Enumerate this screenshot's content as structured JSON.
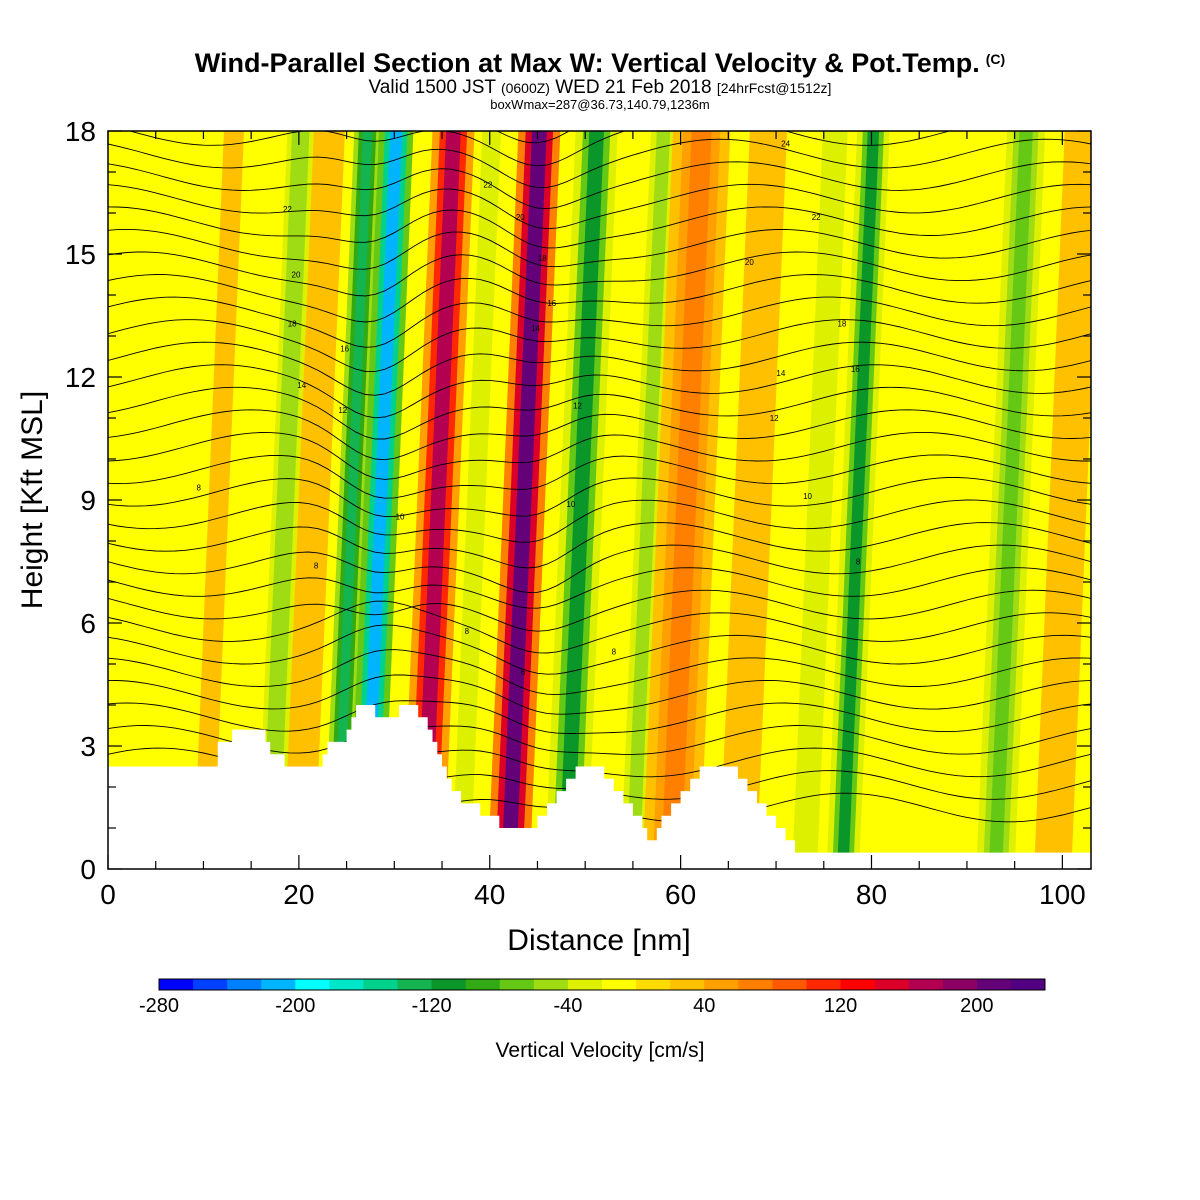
{
  "header": {
    "title": "Wind-Parallel Section at Max W: Vertical Velocity & Pot.Temp.",
    "copyright": "(C)",
    "valid_prefix": "Valid 1500 JST",
    "valid_utc": "(0600Z)",
    "valid_date": "WED 21 Feb 2018",
    "forecast": "[24hrFcst@1512z]",
    "boxinfo": "boxWmax=287@36.73,140.79,1236m"
  },
  "chart_data": {
    "type": "heatmap",
    "xlabel": "Distance [nm]",
    "ylabel": "Height [Kft MSL]",
    "xlim": [
      0,
      103
    ],
    "ylim": [
      0,
      18
    ],
    "x_ticks": [
      0,
      20,
      40,
      60,
      80,
      100
    ],
    "y_ticks": [
      0,
      3,
      6,
      9,
      12,
      15,
      18
    ],
    "colorbar": {
      "title": "Vertical Velocity [cm/s]",
      "min": -280,
      "max": 240,
      "step": 20,
      "tick_values": [
        -280,
        -200,
        -120,
        -40,
        40,
        120,
        200
      ],
      "colors": [
        "#0000ff",
        "#0040ff",
        "#0080ff",
        "#00b4ff",
        "#00ffff",
        "#00e6c8",
        "#00d28c",
        "#14b450",
        "#0a9628",
        "#32aa14",
        "#64c814",
        "#a0dc14",
        "#dcf000",
        "#ffff00",
        "#ffdc00",
        "#ffc000",
        "#ffa000",
        "#ff8000",
        "#ff5a00",
        "#ff2800",
        "#ff0000",
        "#dc0028",
        "#b40050",
        "#8c0064",
        "#640078",
        "#500080"
      ]
    },
    "velocity_bands": [
      {
        "x": 4,
        "w": 3,
        "v": 10
      },
      {
        "x": 10,
        "w": 3,
        "v": 20
      },
      {
        "x": 17,
        "w": 1.4,
        "v": -60
      },
      {
        "x": 20,
        "w": 2.5,
        "v": 30
      },
      {
        "x": 24,
        "w": 1.4,
        "v": -130
      },
      {
        "x": 27,
        "w": 1.8,
        "v": -210
      },
      {
        "x": 33,
        "w": 2.2,
        "v": 160
      },
      {
        "x": 37,
        "w": 1.5,
        "v": -40
      },
      {
        "x": 42,
        "w": 2.2,
        "v": 200
      },
      {
        "x": 48,
        "w": 2.2,
        "v": -110
      },
      {
        "x": 55,
        "w": 2,
        "v": -50
      },
      {
        "x": 59,
        "w": 3,
        "v": 60
      },
      {
        "x": 66,
        "w": 3,
        "v": 30
      },
      {
        "x": 73,
        "w": 2,
        "v": -30
      },
      {
        "x": 77,
        "w": 1.7,
        "v": -110
      },
      {
        "x": 84,
        "w": 2,
        "v": -20
      },
      {
        "x": 93,
        "w": 2,
        "v": -70
      },
      {
        "x": 99,
        "w": 3,
        "v": 30
      }
    ],
    "terrain_surface": [
      [
        0,
        2.5
      ],
      [
        11,
        2.5
      ],
      [
        11.5,
        3.1
      ],
      [
        12.5,
        3.1
      ],
      [
        13,
        3.4
      ],
      [
        16,
        3.4
      ],
      [
        16.5,
        3.1
      ],
      [
        17,
        2.8
      ],
      [
        18,
        2.8
      ],
      [
        18.5,
        2.5
      ],
      [
        22,
        2.5
      ],
      [
        22.5,
        2.8
      ],
      [
        23,
        3.1
      ],
      [
        24,
        3.1
      ],
      [
        25,
        3.4
      ],
      [
        25.5,
        3.7
      ],
      [
        26,
        4.0
      ],
      [
        27.5,
        4.0
      ],
      [
        28,
        3.7
      ],
      [
        30,
        3.7
      ],
      [
        30.5,
        4.0
      ],
      [
        32,
        4.0
      ],
      [
        32.5,
        3.7
      ],
      [
        33.5,
        3.4
      ],
      [
        34,
        3.1
      ],
      [
        34.5,
        2.8
      ],
      [
        35,
        2.5
      ],
      [
        35.5,
        2.2
      ],
      [
        36,
        1.9
      ],
      [
        37,
        1.6
      ],
      [
        38.5,
        1.6
      ],
      [
        39,
        1.3
      ],
      [
        40,
        1.3
      ],
      [
        41,
        1.0
      ],
      [
        43,
        1.0
      ],
      [
        44,
        1.0
      ],
      [
        45,
        1.3
      ],
      [
        46,
        1.6
      ],
      [
        47,
        1.9
      ],
      [
        48,
        2.2
      ],
      [
        49,
        2.5
      ],
      [
        51,
        2.5
      ],
      [
        52,
        2.2
      ],
      [
        53,
        1.9
      ],
      [
        54,
        1.6
      ],
      [
        55,
        1.3
      ],
      [
        56,
        1.0
      ],
      [
        56.5,
        0.7
      ],
      [
        57.5,
        1.0
      ],
      [
        58,
        1.3
      ],
      [
        59,
        1.6
      ],
      [
        60,
        1.9
      ],
      [
        61,
        2.2
      ],
      [
        62,
        2.5
      ],
      [
        65,
        2.5
      ],
      [
        66,
        2.2
      ],
      [
        67,
        1.9
      ],
      [
        68,
        1.6
      ],
      [
        69,
        1.3
      ],
      [
        70,
        1.0
      ],
      [
        71,
        0.7
      ],
      [
        72,
        0.4
      ],
      [
        75,
        0.4
      ],
      [
        103,
        0.4
      ]
    ],
    "contour_labels": [
      {
        "x": 9.5,
        "y": 9.3,
        "text": "8"
      },
      {
        "x": 18.8,
        "y": 16.1,
        "text": "22"
      },
      {
        "x": 19.7,
        "y": 14.5,
        "text": "20"
      },
      {
        "x": 19.3,
        "y": 13.3,
        "text": "18"
      },
      {
        "x": 20.3,
        "y": 11.8,
        "text": "14"
      },
      {
        "x": 24.8,
        "y": 12.7,
        "text": "16"
      },
      {
        "x": 24.6,
        "y": 11.2,
        "text": "12"
      },
      {
        "x": 21.8,
        "y": 7.4,
        "text": "8"
      },
      {
        "x": 30.6,
        "y": 8.6,
        "text": "10"
      },
      {
        "x": 39.8,
        "y": 16.7,
        "text": "22"
      },
      {
        "x": 43.2,
        "y": 15.9,
        "text": "20"
      },
      {
        "x": 45.5,
        "y": 14.9,
        "text": "18"
      },
      {
        "x": 46.5,
        "y": 13.8,
        "text": "16"
      },
      {
        "x": 44.8,
        "y": 13.2,
        "text": "14"
      },
      {
        "x": 49.2,
        "y": 11.3,
        "text": "12"
      },
      {
        "x": 48.5,
        "y": 8.9,
        "text": "10"
      },
      {
        "x": 37.6,
        "y": 5.8,
        "text": "8"
      },
      {
        "x": 43.5,
        "y": 4.8,
        "text": "6"
      },
      {
        "x": 53.0,
        "y": 5.3,
        "text": "8"
      },
      {
        "x": 71.0,
        "y": 17.7,
        "text": "24"
      },
      {
        "x": 74.2,
        "y": 15.9,
        "text": "22"
      },
      {
        "x": 67.2,
        "y": 14.8,
        "text": "20"
      },
      {
        "x": 76.9,
        "y": 13.3,
        "text": "18"
      },
      {
        "x": 70.5,
        "y": 12.1,
        "text": "14"
      },
      {
        "x": 78.3,
        "y": 12.2,
        "text": "16"
      },
      {
        "x": 69.8,
        "y": 11.0,
        "text": "12"
      },
      {
        "x": 73.3,
        "y": 9.1,
        "text": "10"
      },
      {
        "x": 78.6,
        "y": 7.5,
        "text": "8"
      }
    ]
  }
}
